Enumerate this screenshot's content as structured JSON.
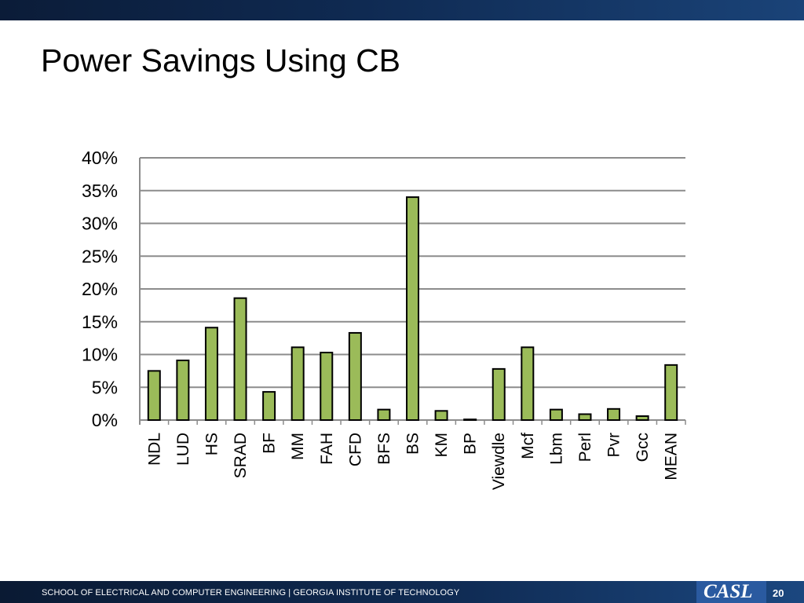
{
  "slide": {
    "title": "Power Savings Using CB",
    "footer_text": "SCHOOL OF ELECTRICAL AND COMPUTER ENGINEERING | GEORGIA INSTITUTE OF TECHNOLOGY",
    "logo_text": "CASL",
    "page_number": "20"
  },
  "colors": {
    "bar_fill": "#9bbb59",
    "bar_stroke": "#000000",
    "grid": "#8c8c8c",
    "header_bar": "#0f2a52",
    "footer_bar": "#0f2a52",
    "logo_bg": "#2a5aa0"
  },
  "chart_data": {
    "type": "bar",
    "categories": [
      "NDL",
      "LUD",
      "HS",
      "SRAD",
      "BF",
      "MM",
      "FAH",
      "CFD",
      "BFS",
      "BS",
      "KM",
      "BP",
      "Viewdle",
      "Mcf",
      "Lbm",
      "Perl",
      "Pvr",
      "Gcc",
      "MEAN"
    ],
    "values": [
      7.5,
      9.1,
      14.1,
      18.6,
      4.3,
      11.1,
      10.3,
      13.3,
      1.6,
      34.0,
      1.4,
      0.1,
      7.8,
      11.1,
      1.6,
      0.9,
      1.7,
      0.6,
      8.4
    ],
    "ylim": [
      0,
      40
    ],
    "yticks": [
      "0%",
      "5%",
      "10%",
      "15%",
      "20%",
      "25%",
      "30%",
      "35%",
      "40%"
    ],
    "grid": true,
    "title": "",
    "xlabel": "",
    "ylabel": ""
  }
}
